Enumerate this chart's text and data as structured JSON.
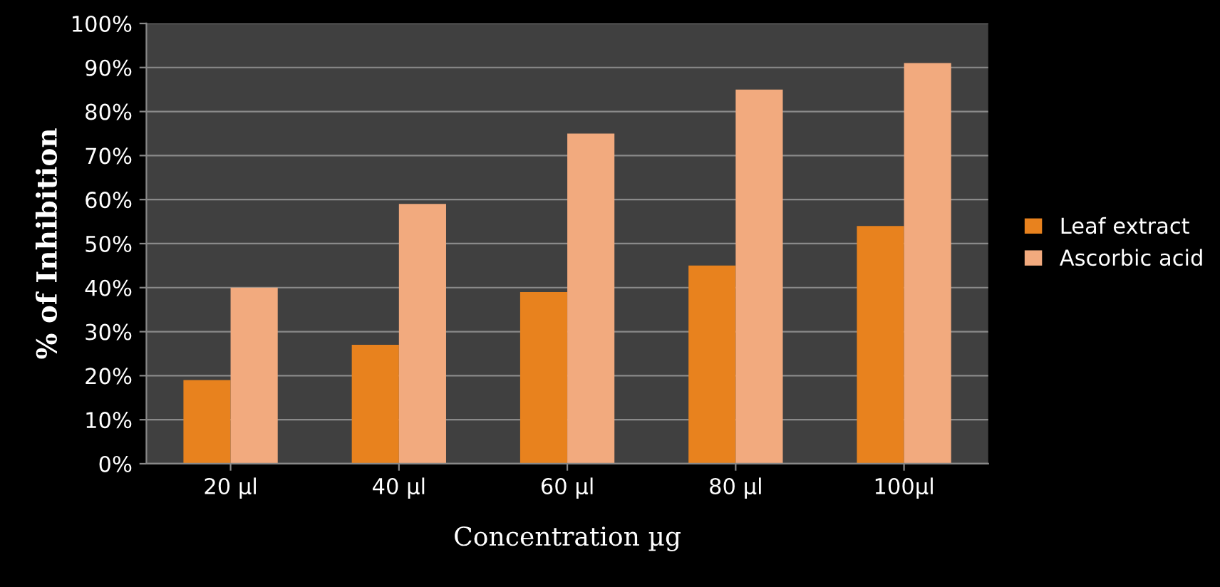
{
  "chart_data": {
    "type": "bar",
    "xlabel": "Concentration µg",
    "ylabel": "% of Inhibition",
    "categories": [
      "20 µl",
      "40 µl",
      "60 µl",
      "80 µl",
      "100µl"
    ],
    "series": [
      {
        "name": "Leaf extract",
        "color": "#e8821e",
        "values": [
          19,
          27,
          39,
          45,
          54
        ]
      },
      {
        "name": "Ascorbic acid",
        "color": "#f2aa7e",
        "values": [
          40,
          59,
          75,
          85,
          91
        ]
      }
    ],
    "ylim": [
      0,
      100
    ],
    "yticks": [
      {
        "value": 0,
        "label": "0%"
      },
      {
        "value": 10,
        "label": "10%"
      },
      {
        "value": 20,
        "label": "20%"
      },
      {
        "value": 30,
        "label": "30%"
      },
      {
        "value": 40,
        "label": "40%"
      },
      {
        "value": 50,
        "label": "50%"
      },
      {
        "value": 60,
        "label": "60%"
      },
      {
        "value": 70,
        "label": "70%"
      },
      {
        "value": 80,
        "label": "80%"
      },
      {
        "value": 90,
        "label": "90%"
      },
      {
        "value": 100,
        "label": "100%"
      }
    ],
    "grid": "y",
    "legend": "right"
  }
}
